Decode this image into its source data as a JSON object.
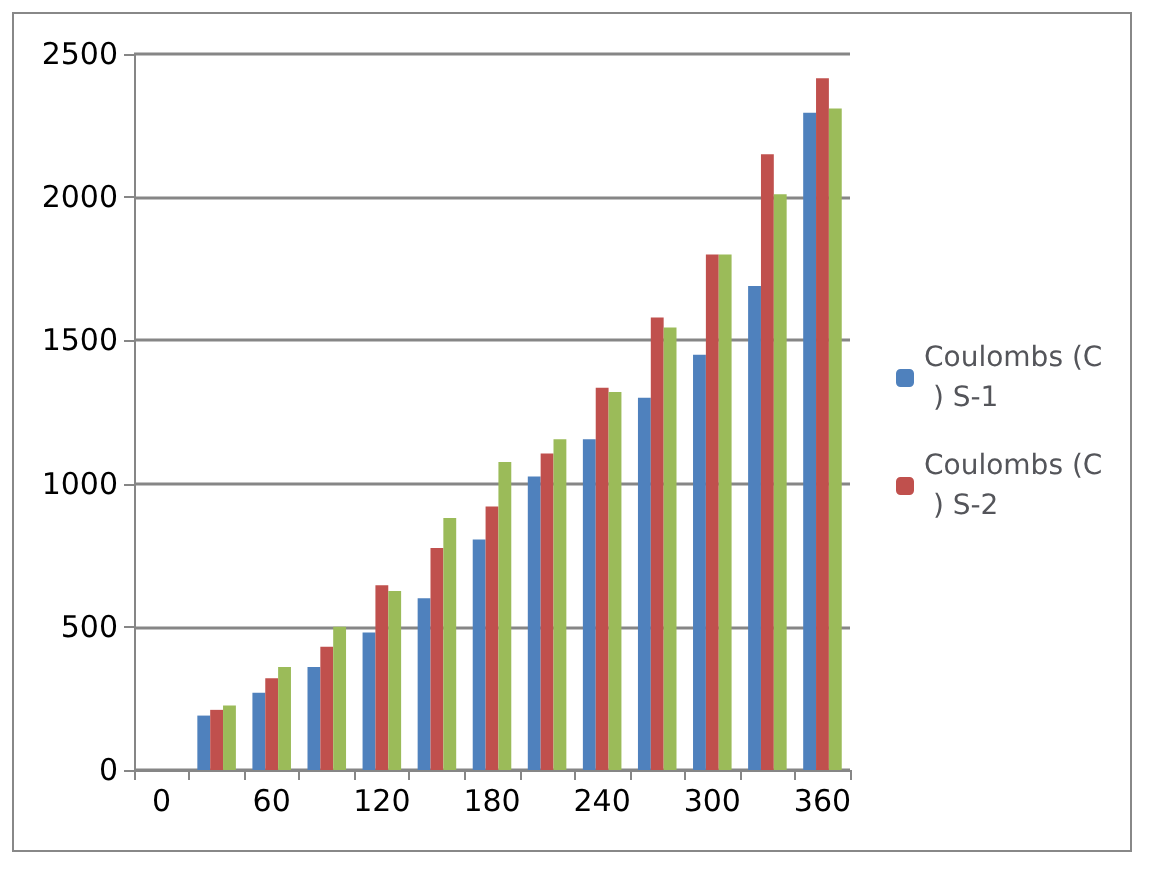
{
  "chart_data": {
    "type": "bar",
    "categories": [
      "0",
      null,
      "60",
      null,
      "120",
      null,
      "180",
      null,
      "240",
      null,
      "300",
      null,
      "360"
    ],
    "series": [
      {
        "name": "Coulombs (C ) S-1",
        "color": "#4f81bd",
        "values": [
          0,
          190,
          270,
          360,
          480,
          600,
          805,
          1025,
          1155,
          1300,
          1450,
          1690,
          2295
        ]
      },
      {
        "name": "Coulombs (C ) S-2",
        "color": "#c0504d",
        "values": [
          0,
          210,
          320,
          430,
          645,
          775,
          920,
          1105,
          1335,
          1580,
          1800,
          2150,
          2415
        ]
      },
      {
        "color": "#9bbb59",
        "values": [
          0,
          225,
          360,
          500,
          625,
          880,
          1075,
          1155,
          1320,
          1545,
          1800,
          2010,
          2310
        ]
      }
    ],
    "ylim": [
      0,
      2500
    ],
    "yticks": [
      0,
      500,
      1000,
      1500,
      2000,
      2500
    ],
    "grid": "y",
    "legend": "right"
  }
}
